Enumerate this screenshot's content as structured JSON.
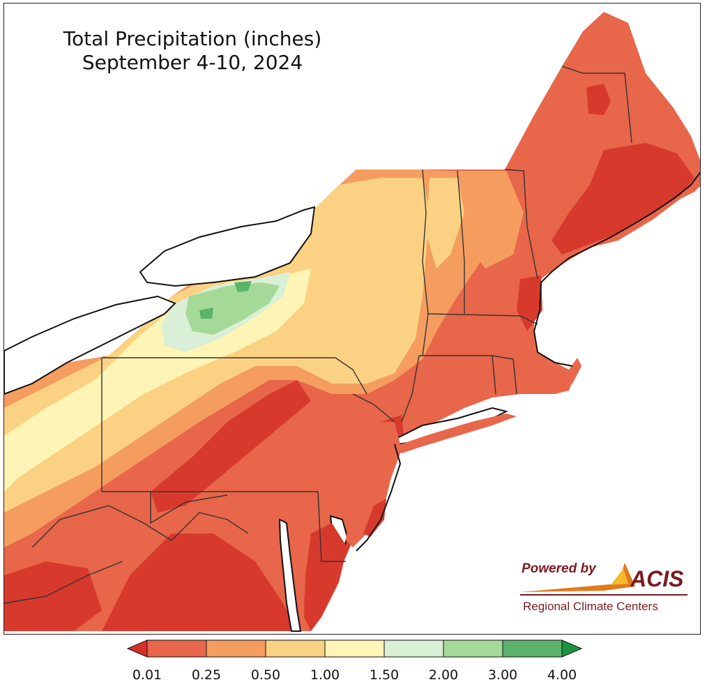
{
  "title": {
    "line1": "Total Precipitation (inches)",
    "line2": "September 4-10, 2024"
  },
  "logo": {
    "powered_by": "Powered by",
    "brand": "ACIS",
    "subtitle": "Regional Climate Centers"
  },
  "legend": {
    "tick_labels": [
      "0.01",
      "0.25",
      "0.50",
      "1.00",
      "1.50",
      "2.00",
      "3.00",
      "4.00"
    ],
    "bins": [
      {
        "lower": "0.01",
        "upper": "0.25",
        "color": "#e8664a"
      },
      {
        "lower": "0.25",
        "upper": "0.50",
        "color": "#f59d5f"
      },
      {
        "lower": "0.50",
        "upper": "1.00",
        "color": "#fbd283"
      },
      {
        "lower": "1.00",
        "upper": "1.50",
        "color": "#fdf4b5"
      },
      {
        "lower": "1.50",
        "upper": "2.00",
        "color": "#d9efd6"
      },
      {
        "lower": "2.00",
        "upper": "3.00",
        "color": "#a4d997"
      },
      {
        "lower": "3.00",
        "upper": "4.00",
        "color": "#5ab36a"
      }
    ],
    "under_color": "#d73027",
    "over_color": "#1a9641"
  },
  "palette": {
    "heavy_dry": "#d73a2c",
    "dry": "#e8664a",
    "light": "#f59d5f",
    "moderate": "#fbd283",
    "wet": "#fdf4b5",
    "wetter": "#d9efd6",
    "green": "#a4d997",
    "dark_green": "#5ab36a",
    "water": "#ffffff",
    "border": "#333333",
    "county_line": "#b08a60"
  }
}
